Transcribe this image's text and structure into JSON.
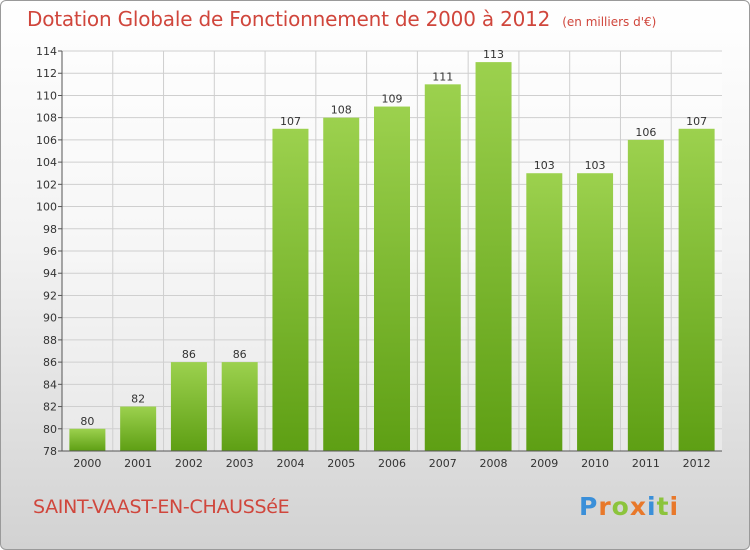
{
  "title": "Dotation Globale de Fonctionnement de 2000 à 2012",
  "unit_note": "(en milliers d'€)",
  "commune": "SAINT-VAAST-EN-CHAUSSéE",
  "brand": {
    "text": "Proxiti",
    "letters": [
      {
        "ch": "P",
        "color": "#3a8fd9"
      },
      {
        "ch": "r",
        "color": "#e8782a"
      },
      {
        "ch": "o",
        "color": "#8cc43c"
      },
      {
        "ch": "x",
        "color": "#e8782a"
      },
      {
        "ch": "i",
        "color": "#3a8fd9"
      },
      {
        "ch": "t",
        "color": "#8cc43c"
      },
      {
        "ch": "i",
        "color": "#e8782a"
      }
    ]
  },
  "colors": {
    "title": "#d0463c",
    "bar_top": "#9cd14e",
    "bar_bottom": "#5e9f14",
    "grid": "#cfcfcf",
    "axis": "#555555",
    "text": "#333333"
  },
  "chart_data": {
    "type": "bar",
    "title": "Dotation Globale de Fonctionnement de 2000 à 2012",
    "xlabel": "",
    "ylabel": "",
    "categories": [
      "2000",
      "2001",
      "2002",
      "2003",
      "2004",
      "2005",
      "2006",
      "2007",
      "2008",
      "2009",
      "2010",
      "2011",
      "2012"
    ],
    "values": [
      80,
      82,
      86,
      86,
      107,
      108,
      109,
      111,
      113,
      103,
      103,
      106,
      107
    ],
    "ylim": [
      78,
      114
    ],
    "yticks": [
      78,
      80,
      82,
      84,
      86,
      88,
      90,
      92,
      94,
      96,
      98,
      100,
      102,
      104,
      106,
      108,
      110,
      112,
      114
    ],
    "grid": true,
    "data_labels": true
  }
}
